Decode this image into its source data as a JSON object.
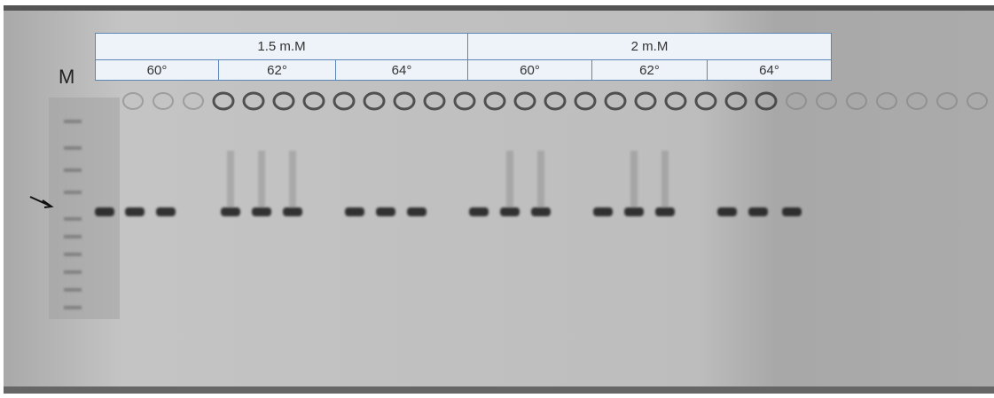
{
  "marker_label": "M",
  "concentrations": [
    {
      "label": "1.5 m.M",
      "temperatures": [
        "60°",
        "62°",
        "64°"
      ]
    },
    {
      "label": "2 m.M",
      "temperatures": [
        "60°",
        "62°",
        "64°"
      ]
    }
  ]
}
